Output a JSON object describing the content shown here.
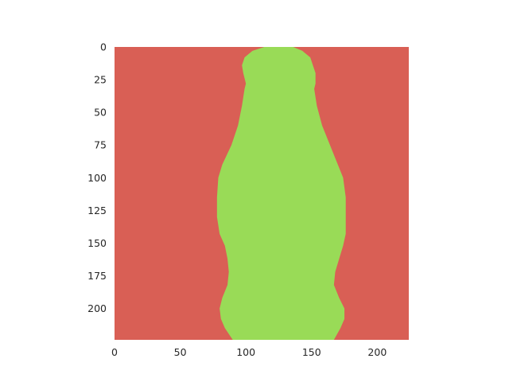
{
  "chart_data": {
    "type": "heatmap",
    "title": "",
    "xlabel": "",
    "ylabel": "",
    "xlim": [
      0,
      224
    ],
    "ylim": [
      224,
      0
    ],
    "grid": false,
    "xticks": [
      0,
      50,
      100,
      150,
      200
    ],
    "yticks": [
      0,
      25,
      50,
      75,
      100,
      125,
      150,
      175,
      200
    ],
    "colors": {
      "background": "#d95f55",
      "mask": "#99db57"
    },
    "mask_boundary": [
      {
        "row": 0,
        "left": 114,
        "right": 136
      },
      {
        "row": 3,
        "left": 105,
        "right": 143
      },
      {
        "row": 8,
        "left": 99,
        "right": 149
      },
      {
        "row": 14,
        "left": 97,
        "right": 151
      },
      {
        "row": 20,
        "left": 98,
        "right": 153
      },
      {
        "row": 28,
        "left": 100,
        "right": 153
      },
      {
        "row": 32,
        "left": 99,
        "right": 152
      },
      {
        "row": 45,
        "left": 97,
        "right": 154
      },
      {
        "row": 60,
        "left": 94,
        "right": 158
      },
      {
        "row": 75,
        "left": 89,
        "right": 164
      },
      {
        "row": 90,
        "left": 82,
        "right": 170
      },
      {
        "row": 100,
        "left": 79,
        "right": 174
      },
      {
        "row": 115,
        "left": 78,
        "right": 176
      },
      {
        "row": 130,
        "left": 78,
        "right": 176
      },
      {
        "row": 143,
        "left": 80,
        "right": 176
      },
      {
        "row": 152,
        "left": 84,
        "right": 174
      },
      {
        "row": 162,
        "left": 86,
        "right": 171
      },
      {
        "row": 172,
        "left": 87,
        "right": 168
      },
      {
        "row": 182,
        "left": 86,
        "right": 167
      },
      {
        "row": 192,
        "left": 82,
        "right": 171
      },
      {
        "row": 200,
        "left": 80,
        "right": 175
      },
      {
        "row": 208,
        "left": 81,
        "right": 175
      },
      {
        "row": 215,
        "left": 84,
        "right": 172
      },
      {
        "row": 224,
        "left": 90,
        "right": 167
      }
    ]
  }
}
